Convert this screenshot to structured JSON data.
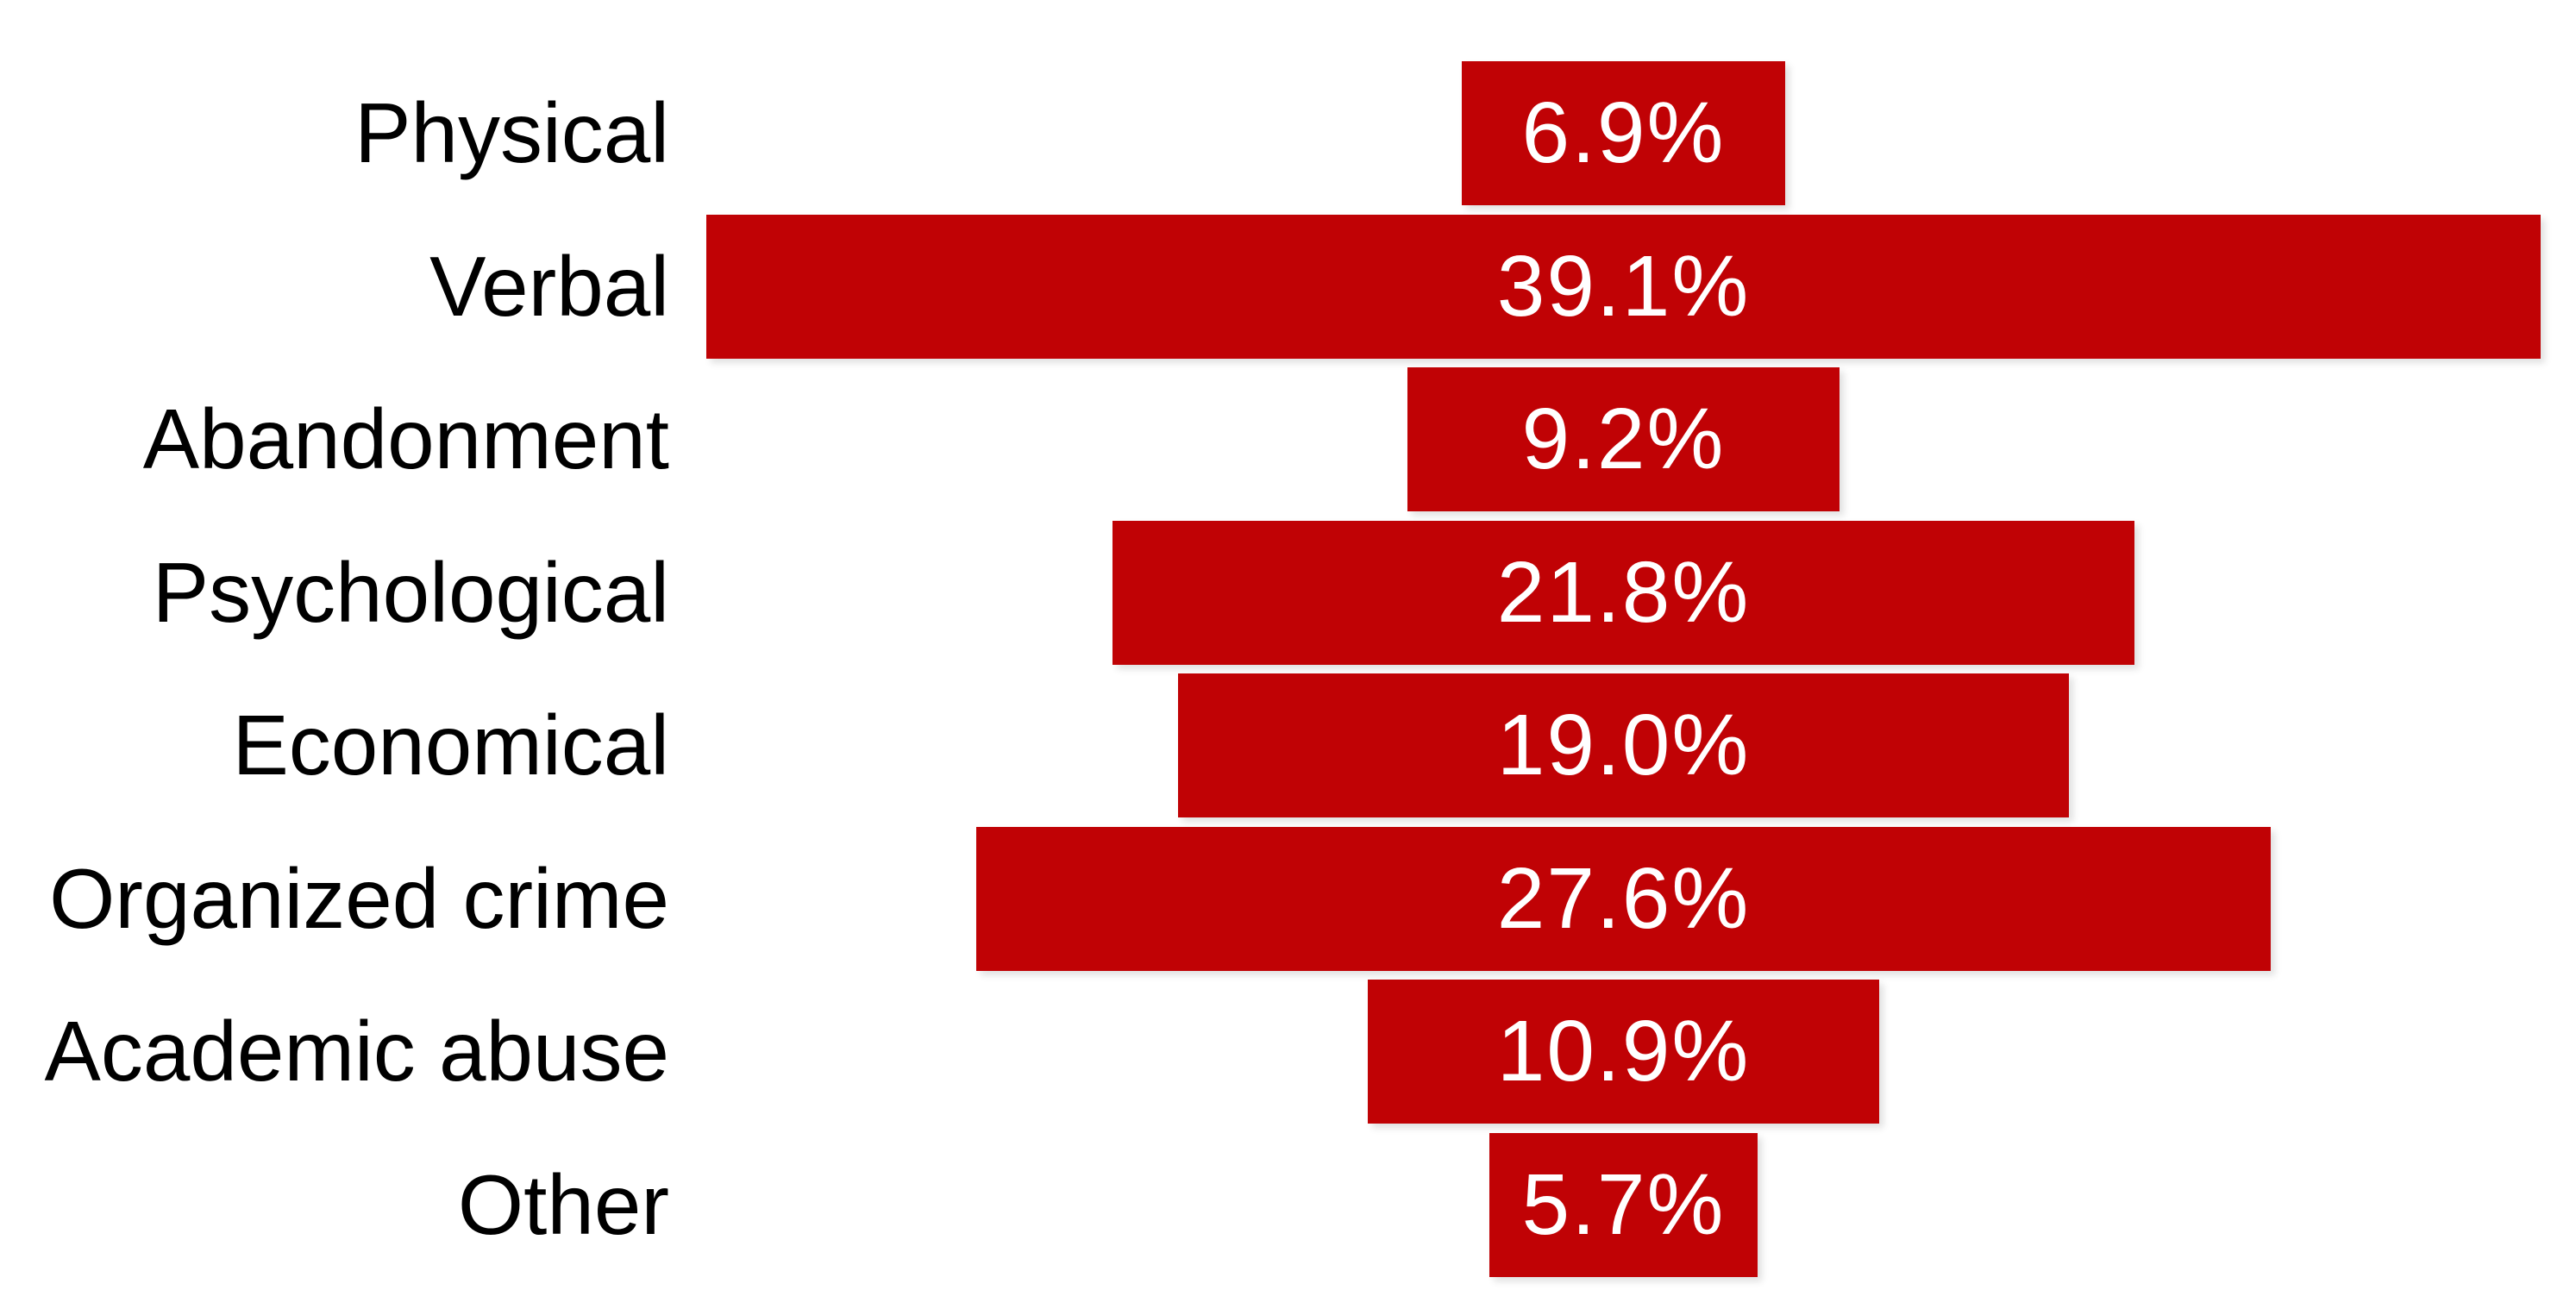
{
  "chart_data": {
    "type": "bar",
    "orientation": "horizontal-centered-funnel",
    "title": "",
    "xlabel": "",
    "ylabel": "",
    "categories": [
      "Physical",
      "Verbal",
      "Abandonment",
      "Psychological",
      "Economical",
      "Organized crime",
      "Academic abuse",
      "Other"
    ],
    "values": [
      6.9,
      39.1,
      9.2,
      21.8,
      19.0,
      27.6,
      10.9,
      5.7
    ],
    "value_labels": [
      "6.9%",
      "39.1%",
      "9.2%",
      "21.8%",
      "19.0%",
      "27.6%",
      "10.9%",
      "5.7%"
    ],
    "x_max": 39.1,
    "grid": false,
    "legend": "none",
    "data_label_position": "inside-center",
    "axis_line": "vertical-left-baseline",
    "colors": {
      "bar": "#c00205",
      "value_text": "#ffffff",
      "category_text": "#000000",
      "axis_line": "#d8d8d8",
      "background": "#ffffff"
    }
  }
}
